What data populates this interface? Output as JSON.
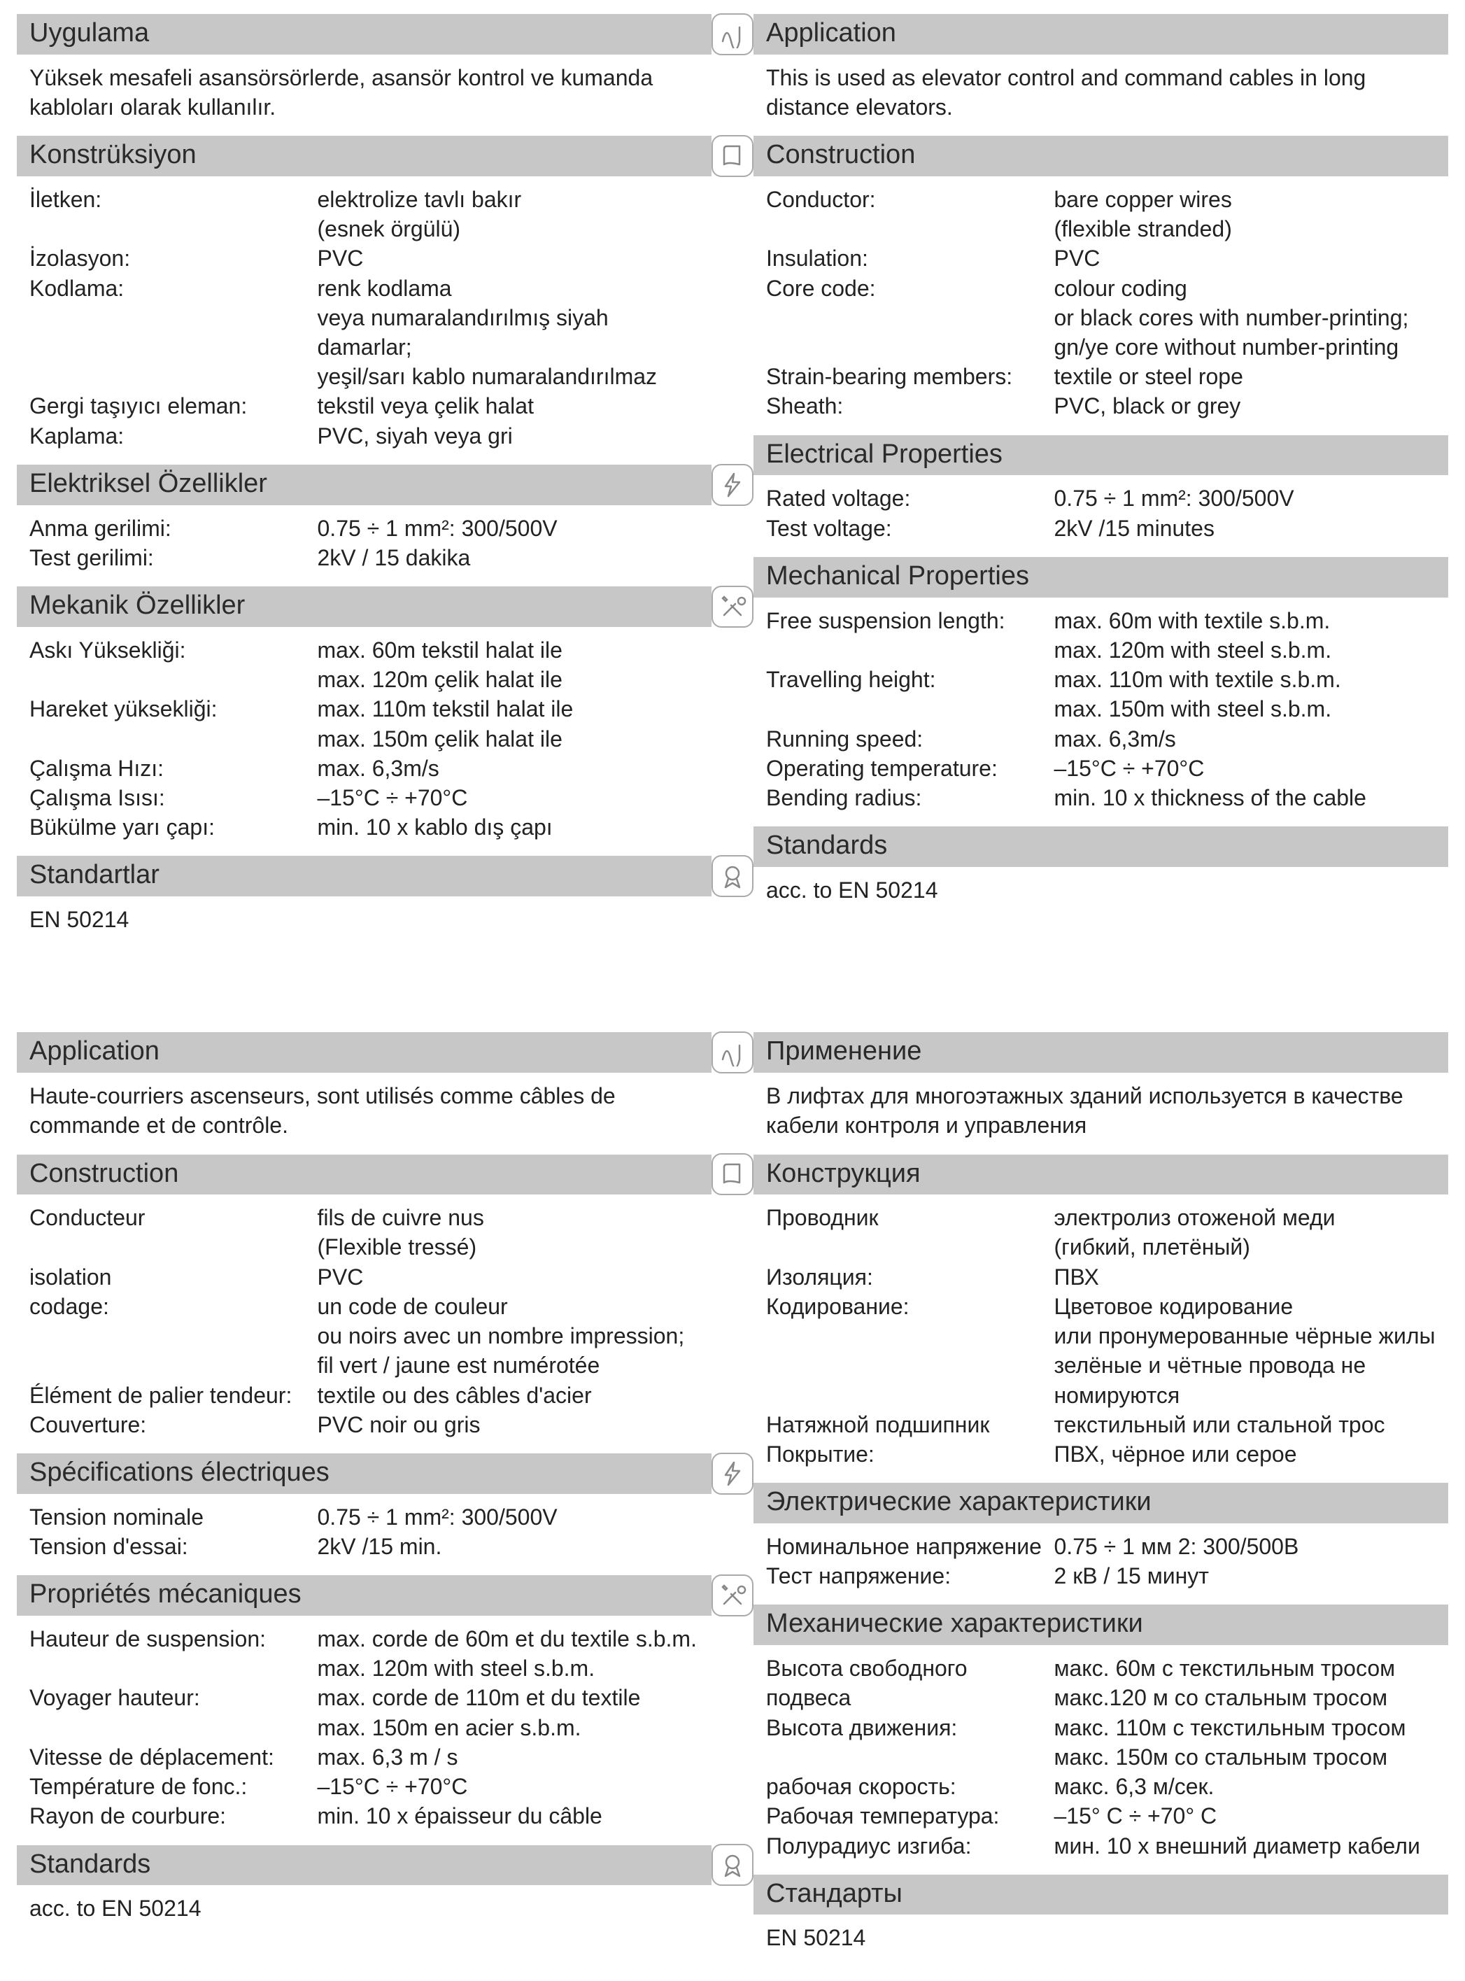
{
  "style": {
    "header_bg": "#c7c7c7",
    "header_color": "#2a2a2a",
    "text_color": "#222222",
    "icon_border": "#aaaaaa",
    "icon_stroke": "#888888",
    "font_family": "Segoe UI, Helvetica Neue, Arial, sans-serif",
    "header_fontsize_pt": 28,
    "body_fontsize_pt": 24,
    "label_col_width_pct": 43
  },
  "icons": [
    "wave",
    "book",
    "bolt",
    "tools",
    "medal"
  ],
  "pages": [
    {
      "left": {
        "sections": [
          {
            "header": "Uygulama",
            "icon": "wave",
            "paragraph": "Yüksek mesafeli asansörsörlerde, asansör kontrol ve kumanda kabloları olarak kullanılır."
          },
          {
            "header": "Konstrüksiyon",
            "icon": "book",
            "rows": [
              {
                "label": "İletken:",
                "value": "elektrolize tavlı bakır\n(esnek örgülü)"
              },
              {
                "label": "İzolasyon:",
                "value": "PVC"
              },
              {
                "label": "Kodlama:",
                "value": "renk kodlama\nveya numaralandırılmış siyah damarlar;\nyeşil/sarı kablo numaralandırılmaz"
              },
              {
                "label": "Gergi taşıyıcı eleman:",
                "value": "tekstil veya çelik halat"
              },
              {
                "label": "Kaplama:",
                "value": "PVC, siyah veya gri"
              }
            ]
          },
          {
            "header": "Elektriksel Özellikler",
            "icon": "bolt",
            "rows": [
              {
                "label": "Anma gerilimi:",
                "value": "0.75 ÷ 1 mm²: 300/500V"
              },
              {
                "label": "Test gerilimi:",
                "value": "2kV / 15 dakika"
              }
            ]
          },
          {
            "header": "Mekanik Özellikler",
            "icon": "tools",
            "rows": [
              {
                "label": "Askı Yüksekliği:",
                "value": "max. 60m  tekstil halat ile\nmax. 120m çelik halat ile"
              },
              {
                "label": "Hareket yüksekliği:",
                "value": "max. 110m  tekstil halat ile\nmax. 150m çelik halat ile"
              },
              {
                "label": "Çalışma Hızı:",
                "value": "max. 6,3m/s"
              },
              {
                "label": "Çalışma Isısı:",
                "value": "–15°C ÷ +70°C"
              },
              {
                "label": "Bükülme yarı çapı:",
                "value": "min. 10 x kablo dış çapı"
              }
            ]
          },
          {
            "header": "Standartlar",
            "icon": "medal",
            "paragraph": "EN 50214"
          }
        ]
      },
      "right": {
        "sections": [
          {
            "header": "Application",
            "paragraph": "This is used as elevator control and command cables in long distance elevators."
          },
          {
            "header": "Construction",
            "rows": [
              {
                "label": "Conductor:",
                "value": "bare copper wires\n(flexible stranded)"
              },
              {
                "label": "Insulation:",
                "value": "PVC"
              },
              {
                "label": "Core code:",
                "value": "colour coding\nor black cores with number-printing;\ngn/ye  core without number-printing"
              },
              {
                "label": "Strain-bearing members:",
                "value": "textile or steel rope"
              },
              {
                "label": "Sheath:",
                "value": "PVC, black or grey"
              }
            ]
          },
          {
            "header": "Electrical Properties",
            "rows": [
              {
                "label": "Rated voltage:",
                "value": "0.75 ÷ 1 mm²: 300/500V"
              },
              {
                "label": "Test voltage:",
                "value": "2kV /15 minutes"
              }
            ]
          },
          {
            "header": "Mechanical Properties",
            "rows": [
              {
                "label": "Free suspension length:",
                "value": "max. 60m with textile s.b.m.\nmax. 120m with steel s.b.m."
              },
              {
                "label": "Travelling height:",
                "value": "max. 110m with textile s.b.m.\nmax. 150m with steel s.b.m."
              },
              {
                "label": "Running speed:",
                "value": "max. 6,3m/s"
              },
              {
                "label": "Operating temperature:",
                "value": "–15°C ÷ +70°C"
              },
              {
                "label": "Bending radius:",
                "value": "min. 10 x thickness of the cable"
              }
            ]
          },
          {
            "header": "Standards",
            "paragraph": "acc. to EN 50214"
          }
        ]
      }
    },
    {
      "left": {
        "sections": [
          {
            "header": "Application",
            "icon": "wave",
            "paragraph": "Haute-courriers ascenseurs, sont utilisés comme câbles de commande et de contrôle."
          },
          {
            "header": "Construction",
            "icon": "book",
            "rows": [
              {
                "label": "Conducteur",
                "value": "fils de cuivre nus\n(Flexible tressé)"
              },
              {
                "label": "isolation",
                "value": "PVC"
              },
              {
                "label": "codage:",
                "value": "un code de couleur\nou noirs avec un nombre impression;\nfil vert / jaune est numérotée"
              },
              {
                "label": "Élément de palier tendeur:",
                "value": "textile ou des câbles d'acier"
              },
              {
                "label": "Couverture:",
                "value": "PVC noir ou gris"
              }
            ]
          },
          {
            "header": "Spécifications électriques",
            "icon": "bolt",
            "rows": [
              {
                "label": "Tension nominale",
                "value": "0.75 ÷ 1 mm²: 300/500V"
              },
              {
                "label": "Tension d'essai:",
                "value": "2kV  /15 min."
              }
            ]
          },
          {
            "header": "Propriétés mécaniques",
            "icon": "tools",
            "rows": [
              {
                "label": "Hauteur de suspension:",
                "value": "max. corde de 60m et du textile s.b.m.\nmax. 120m with steel s.b.m."
              },
              {
                "label": "Voyager hauteur:",
                "value": "max. corde de 110m et du textile\nmax. 150m en acier s.b.m."
              },
              {
                "label": "Vitesse de déplacement:",
                "value": "max. 6,3 m / s"
              },
              {
                "label": "Température de fonc.:",
                "value": "–15°C ÷ +70°C"
              },
              {
                "label": "Rayon de courbure:",
                "value": "min. 10 x épaisseur du câble"
              }
            ]
          },
          {
            "header": "Standards",
            "icon": "medal",
            "paragraph": "acc. to EN 50214"
          }
        ]
      },
      "right": {
        "sections": [
          {
            "header": "Применение",
            "paragraph": "В лифтах для многоэтажных зданий используется в качестве кабели контроля и управления"
          },
          {
            "header": "Конструкция",
            "rows": [
              {
                "label": "Проводник",
                "value": "электролиз отоженой меди\n(гибкий, плетёный)"
              },
              {
                "label": "Изоляция:",
                "value": "ПВХ"
              },
              {
                "label": "Кодирование:",
                "value": "Цветовое кодирование\nили пронумерованные чёрные жилы\nзелёные и чётные провода не номируются"
              },
              {
                "label": "Натяжной подшипник",
                "value": "текстильный или стальной трос"
              },
              {
                "label": "Покрытие:",
                "value": "ПВХ, чёрное или серое"
              }
            ]
          },
          {
            "header": "Электрические характеристики",
            "rows": [
              {
                "label": "Номинальное напряжение",
                "value": "0.75 ÷ 1 мм 2: 300/500В"
              },
              {
                "label": "Тест напряжение:",
                "value": "2 кВ / 15 минут"
              }
            ]
          },
          {
            "header": "Механические характеристики",
            "rows": [
              {
                "label": "Высота свободного подвеса",
                "value": "макс. 60м с текстильным тросом\nмакс.120 м  со стальным тросом"
              },
              {
                "label": "Высота движения:",
                "value": "макс. 110м с текстильным тросом\nмакс. 150м со стальным тросом"
              },
              {
                "label": "рабочая скорость:",
                "value": "макс. 6,3 м/сек."
              },
              {
                "label": "Рабочая температура:",
                "value": "–15° C ÷ +70° C"
              },
              {
                "label": "Полурадиус изгиба:",
                "value": "мин. 10 x внешний диаметр кабели"
              }
            ]
          },
          {
            "header": "Стандарты",
            "paragraph": "EN 50214"
          }
        ]
      }
    }
  ]
}
